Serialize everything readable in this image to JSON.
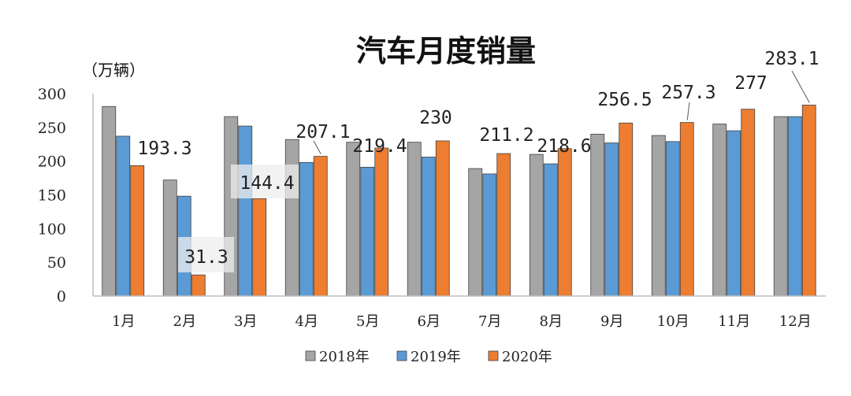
{
  "chart_data": {
    "type": "bar",
    "title": "汽车月度销量",
    "unit_label": "（万辆）",
    "categories": [
      "1月",
      "2月",
      "3月",
      "4月",
      "5月",
      "6月",
      "7月",
      "8月",
      "9月",
      "10月",
      "11月",
      "12月"
    ],
    "series": [
      {
        "name": "2018年",
        "color": "#a5a5a5",
        "values": [
          281,
          172,
          266,
          232,
          228,
          228,
          189,
          210,
          240,
          238,
          255,
          266
        ]
      },
      {
        "name": "2019年",
        "color": "#5b9bd5",
        "values": [
          237,
          148,
          252,
          198,
          191,
          206,
          181,
          196,
          227,
          229,
          245,
          266
        ]
      },
      {
        "name": "2020年",
        "color": "#ed7d31",
        "values": [
          193.3,
          31.3,
          144.4,
          207.1,
          219.4,
          230,
          211.2,
          218.6,
          256.5,
          257.3,
          277,
          283.1
        ]
      }
    ],
    "data_labels": [
      "193.3",
      "31.3",
      "144.4",
      "207.1",
      "219.4",
      "230",
      "211.2",
      "218.6",
      "256.5",
      "257.3",
      "277",
      "283.1"
    ],
    "labeled_series": "2020年",
    "ylim": [
      0,
      300
    ],
    "yticks": [
      0,
      50,
      100,
      150,
      200,
      250,
      300
    ],
    "legend_position": "bottom",
    "grid": false
  }
}
